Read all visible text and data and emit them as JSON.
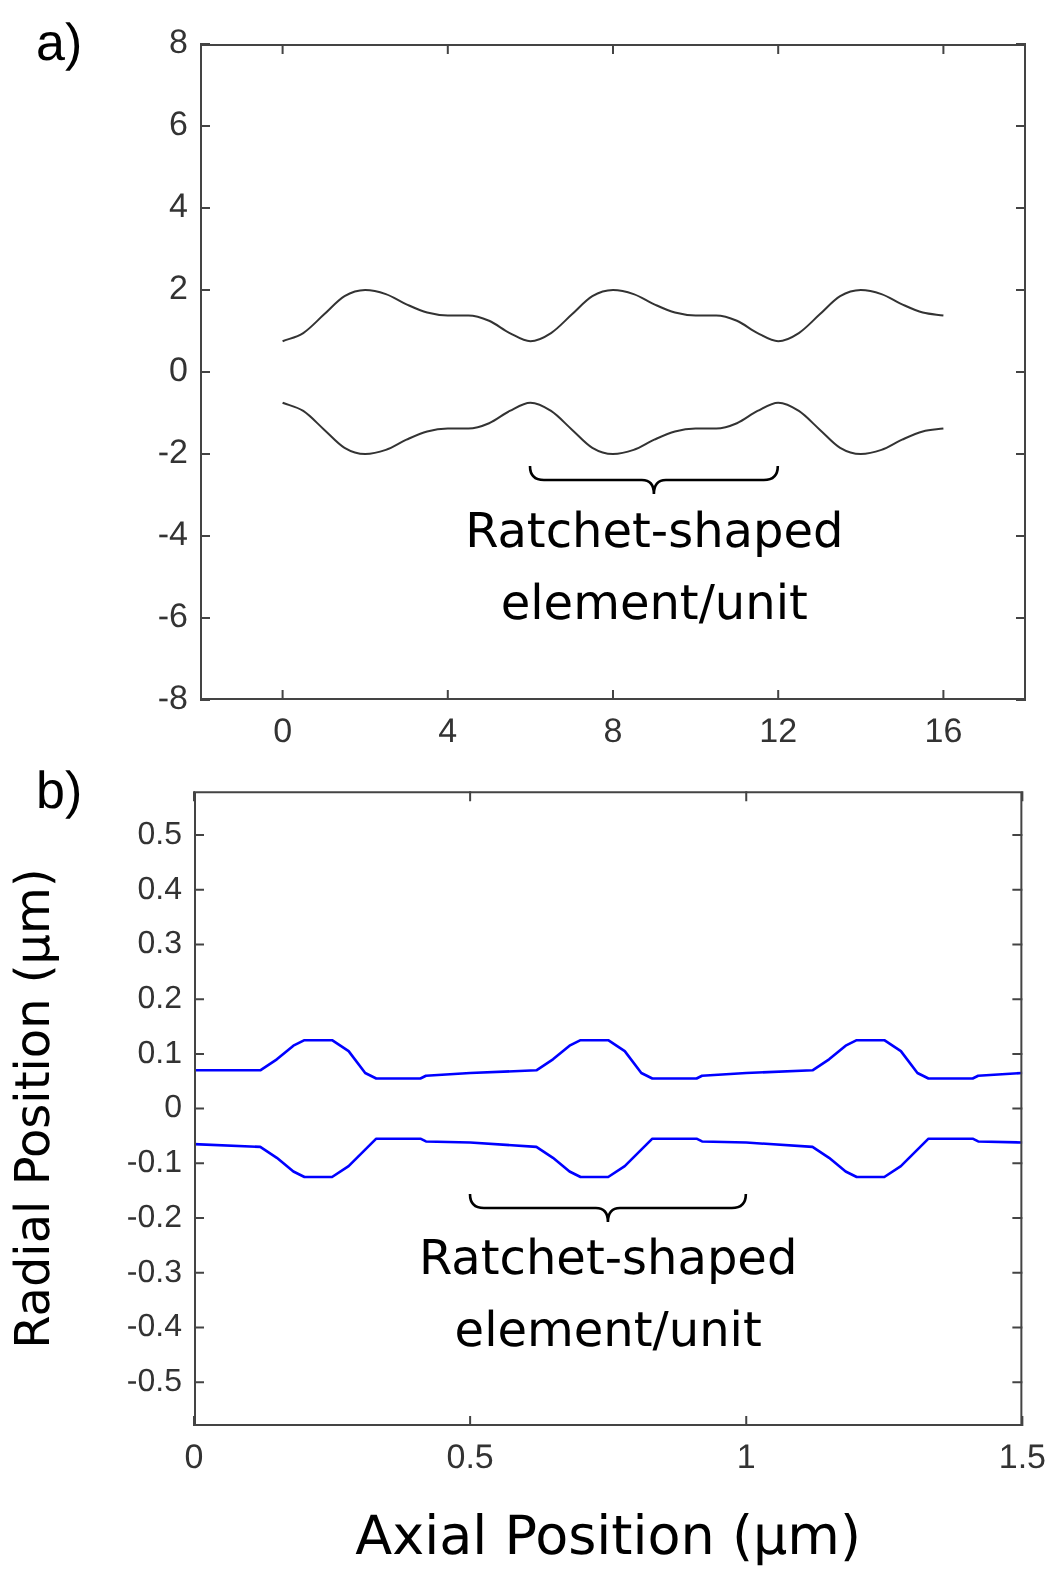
{
  "chart_data": [
    {
      "type": "line",
      "title": "a)",
      "x": [
        0,
        0.5,
        1,
        1.5,
        2,
        2.5,
        3,
        3.5,
        4,
        4.5,
        5,
        5.5,
        6,
        6.5,
        7,
        7.5,
        8,
        8.5,
        9,
        9.5,
        10,
        10.5,
        11,
        11.5,
        12,
        12.5,
        13,
        13.5,
        14,
        14.5,
        15,
        15.5,
        16
      ],
      "series": [
        {
          "color": "#333333",
          "values": [
            0.75,
            0.95,
            1.4,
            1.85,
            2.0,
            1.9,
            1.65,
            1.45,
            1.38,
            1.38,
            1.25,
            0.95,
            0.75,
            0.95,
            1.4,
            1.85,
            2.0,
            1.9,
            1.65,
            1.45,
            1.38,
            1.38,
            1.25,
            0.95,
            0.75,
            0.95,
            1.4,
            1.85,
            2.0,
            1.9,
            1.65,
            1.45,
            1.38
          ]
        },
        {
          "color": "#333333",
          "values": [
            -0.75,
            -0.95,
            -1.4,
            -1.85,
            -2.0,
            -1.9,
            -1.65,
            -1.45,
            -1.38,
            -1.38,
            -1.25,
            -0.95,
            -0.75,
            -0.95,
            -1.4,
            -1.85,
            -2.0,
            -1.9,
            -1.65,
            -1.45,
            -1.38,
            -1.38,
            -1.25,
            -0.95,
            -0.75,
            -0.95,
            -1.4,
            -1.85,
            -2.0,
            -1.9,
            -1.65,
            -1.45,
            -1.38
          ]
        }
      ],
      "xlim": [
        -2,
        18
      ],
      "xticks": [
        0,
        4,
        8,
        12,
        16
      ],
      "ylim": [
        -8,
        8
      ],
      "yticks": [
        -8,
        -6,
        -4,
        -2,
        0,
        2,
        4,
        6,
        8
      ],
      "annotations": [
        "Ratchet-shaped element/unit"
      ],
      "grid": false,
      "legend": false,
      "marker": "none",
      "line_style": "solid"
    },
    {
      "type": "line",
      "title": "b)",
      "xlabel": "Axial Position (µm)",
      "ylabel": "Radial Position (µm)",
      "x": [
        0,
        0.12,
        0.15,
        0.18,
        0.2,
        0.25,
        0.28,
        0.31,
        0.33,
        0.41,
        0.42,
        0.5,
        0.62,
        0.65,
        0.68,
        0.7,
        0.75,
        0.78,
        0.81,
        0.83,
        0.91,
        0.92,
        1.0,
        1.12,
        1.15,
        1.18,
        1.2,
        1.25,
        1.28,
        1.31,
        1.33,
        1.41,
        1.42,
        1.5
      ],
      "series": [
        {
          "color": "#0000ff",
          "values": [
            0.07,
            0.07,
            0.09,
            0.115,
            0.125,
            0.125,
            0.105,
            0.065,
            0.055,
            0.055,
            0.06,
            0.065,
            0.07,
            0.09,
            0.115,
            0.125,
            0.125,
            0.105,
            0.065,
            0.055,
            0.055,
            0.06,
            0.065,
            0.07,
            0.09,
            0.115,
            0.125,
            0.125,
            0.105,
            0.065,
            0.055,
            0.055,
            0.06,
            0.065
          ]
        },
        {
          "color": "#0000ff",
          "values": [
            -0.065,
            -0.07,
            -0.09,
            -0.115,
            -0.125,
            -0.125,
            -0.105,
            -0.075,
            -0.055,
            -0.055,
            -0.06,
            -0.062,
            -0.07,
            -0.09,
            -0.115,
            -0.125,
            -0.125,
            -0.105,
            -0.075,
            -0.055,
            -0.055,
            -0.06,
            -0.062,
            -0.07,
            -0.09,
            -0.115,
            -0.125,
            -0.125,
            -0.105,
            -0.075,
            -0.055,
            -0.055,
            -0.06,
            -0.062
          ]
        }
      ],
      "xlim": [
        0,
        1.5
      ],
      "xticks": [
        0,
        0.5,
        1,
        1.5
      ],
      "ylim": [
        -0.58,
        0.58
      ],
      "yticks": [
        -0.5,
        -0.4,
        -0.3,
        -0.2,
        -0.1,
        0,
        0.1,
        0.2,
        0.3,
        0.4,
        0.5
      ],
      "annotations": [
        "Ratchet-shaped element/unit"
      ],
      "grid": false,
      "legend": false,
      "marker": "none",
      "line_style": "solid"
    }
  ]
}
